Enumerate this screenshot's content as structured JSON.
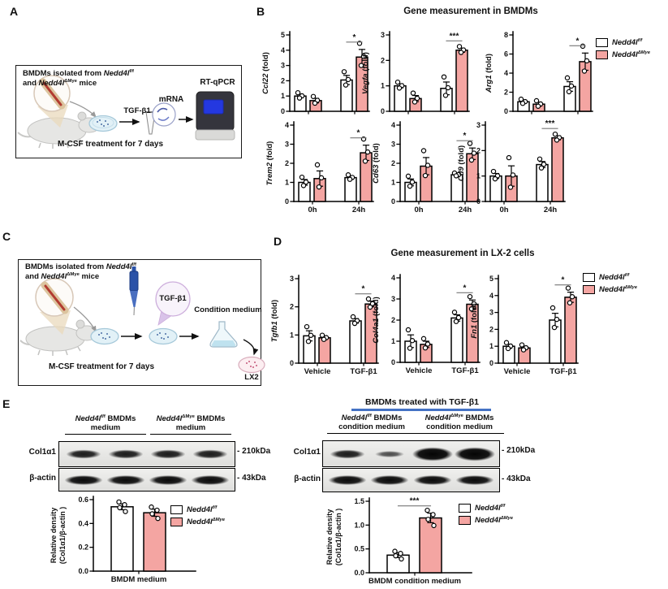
{
  "panel_labels": {
    "a": "A",
    "b": "B",
    "c": "C",
    "d": "D",
    "e": "E"
  },
  "colors": {
    "pink": "#F4A5A2",
    "blue_underline": "#4472C4",
    "wt_bar": "#FFFFFF"
  },
  "legend": {
    "wt_base": "Nedd4l",
    "wt_sup": "f/f",
    "ko_base": "Nedd4l",
    "ko_sup": "ΔMye"
  },
  "panelA": {
    "line1_prefix": "BMDMs isolated from ",
    "line2_prefix": "and ",
    "line2_suffix": " mice",
    "mcsf": "M-CSF treatment for 7 days",
    "tgfb": "TGF-β1",
    "mrna": "mRNA",
    "rtqpcr": "RT-qPCR"
  },
  "panelB": {
    "title": "Gene measurement in BMDMs"
  },
  "panelC": {
    "line1_prefix": "BMDMs isolated from ",
    "line2_prefix": "and ",
    "line2_suffix": " mice",
    "mcsf": "M-CSF treatment for 7 days",
    "tgfb": "TGF-β1",
    "condition": "Condition medium",
    "lx2": "LX2"
  },
  "panelD": {
    "title": "Gene measurement in LX-2 cells"
  },
  "panelE": {
    "left": {
      "group_suffix": " BMDMs",
      "group_line2": "medium",
      "rows": [
        {
          "label": "Col1α1",
          "kda": "- 210kDa",
          "bands": [
            "m",
            "m",
            "m",
            "m"
          ]
        },
        {
          "label": "β-actin",
          "kda": "- 43kDa",
          "bands": [
            "d",
            "d",
            "d",
            "d"
          ]
        }
      ]
    },
    "right": {
      "header": "BMDMs treated with TGF-β1",
      "group_suffix": " BMDMs",
      "group_line2": "condition medium",
      "rows": [
        {
          "label": "Col1α1",
          "kda": "- 210kDa",
          "bands": [
            "m",
            "l",
            "D",
            "D"
          ]
        },
        {
          "label": "β-actin",
          "kda": "- 43kDa",
          "bands": [
            "d",
            "d",
            "d",
            "d"
          ]
        }
      ]
    }
  },
  "chart_data": [
    {
      "id": "ccl22",
      "type": "bar",
      "panel": "B",
      "gene": "Ccl22",
      "ylabel_suffix": "(fold)",
      "ylim": [
        0,
        5
      ],
      "yticks": [
        "0",
        "1",
        "2",
        "3",
        "4",
        "5"
      ],
      "categories": [
        "0h",
        "24h"
      ],
      "show_cat_labels": false,
      "n_points": 3,
      "sig": {
        "category": 1,
        "label": "*"
      },
      "series": [
        {
          "name": "Nedd4l f/f",
          "color": "#FFFFFF",
          "values": [
            1.0,
            2.05
          ],
          "errors": [
            0.12,
            0.3
          ]
        },
        {
          "name": "Nedd4l ΔMye",
          "color": "#F4A5A2",
          "values": [
            0.7,
            3.55
          ],
          "errors": [
            0.15,
            0.5
          ]
        }
      ]
    },
    {
      "id": "vegfa",
      "type": "bar",
      "panel": "B",
      "gene": "Vegfa",
      "ylabel_suffix": "(fold)",
      "ylim": [
        0,
        3
      ],
      "yticks": [
        "0",
        "1",
        "2",
        "3"
      ],
      "categories": [
        "0h",
        "24h"
      ],
      "show_cat_labels": false,
      "n_points": 3,
      "sig": {
        "category": 1,
        "label": "***"
      },
      "series": [
        {
          "name": "Nedd4l f/f",
          "color": "#FFFFFF",
          "values": [
            1.0,
            0.9
          ],
          "errors": [
            0.08,
            0.25
          ]
        },
        {
          "name": "Nedd4l ΔMye",
          "color": "#F4A5A2",
          "values": [
            0.5,
            2.4
          ],
          "errors": [
            0.12,
            0.08
          ]
        }
      ]
    },
    {
      "id": "arg1",
      "type": "bar",
      "panel": "B",
      "gene": "Arg1",
      "ylabel_suffix": "(fold)",
      "ylim": [
        0,
        8
      ],
      "yticks": [
        "0",
        "2",
        "4",
        "6",
        "8"
      ],
      "categories": [
        "0h",
        "24h"
      ],
      "show_cat_labels": false,
      "n_points": 3,
      "sig": {
        "category": 1,
        "label": "*"
      },
      "series": [
        {
          "name": "Nedd4l f/f",
          "color": "#FFFFFF",
          "values": [
            1.0,
            2.6
          ],
          "errors": [
            0.15,
            0.5
          ]
        },
        {
          "name": "Nedd4l ΔMye",
          "color": "#F4A5A2",
          "values": [
            0.75,
            5.2
          ],
          "errors": [
            0.2,
            0.9
          ]
        }
      ]
    },
    {
      "id": "trem2",
      "type": "bar",
      "panel": "B",
      "gene": "Trem2",
      "ylabel_suffix": "(fold)",
      "ylim": [
        0,
        4
      ],
      "yticks": [
        "0",
        "1",
        "2",
        "3",
        "4"
      ],
      "categories": [
        "0h",
        "24h"
      ],
      "show_cat_labels": true,
      "n_points": 3,
      "sig": {
        "category": 1,
        "label": "*"
      },
      "series": [
        {
          "name": "Nedd4l f/f",
          "color": "#FFFFFF",
          "values": [
            1.0,
            1.25
          ],
          "errors": [
            0.15,
            0.08
          ]
        },
        {
          "name": "Nedd4l ΔMye",
          "color": "#F4A5A2",
          "values": [
            1.2,
            2.55
          ],
          "errors": [
            0.4,
            0.4
          ]
        }
      ]
    },
    {
      "id": "cd63",
      "type": "bar",
      "panel": "B",
      "gene": "Cd63",
      "ylabel_suffix": "(fold)",
      "ylim": [
        0,
        4
      ],
      "yticks": [
        "0",
        "1",
        "2",
        "3",
        "4"
      ],
      "categories": [
        "0h",
        "24h"
      ],
      "show_cat_labels": true,
      "n_points": 3,
      "sig": {
        "category": 1,
        "label": "*"
      },
      "series": [
        {
          "name": "Nedd4l f/f",
          "color": "#FFFFFF",
          "values": [
            1.0,
            1.4
          ],
          "errors": [
            0.18,
            0.05
          ]
        },
        {
          "name": "Nedd4l ΔMye",
          "color": "#F4A5A2",
          "values": [
            1.85,
            2.5
          ],
          "errors": [
            0.45,
            0.3
          ]
        }
      ]
    },
    {
      "id": "cd9",
      "type": "bar",
      "panel": "B",
      "gene": "Cd9",
      "ylabel_suffix": "(fold)",
      "ylim": [
        0,
        3
      ],
      "yticks": [
        "0",
        "1",
        "2",
        "3"
      ],
      "categories": [
        "0h",
        "24h"
      ],
      "show_cat_labels": true,
      "n_points": 3,
      "sig": {
        "category": 1,
        "label": "***"
      },
      "series": [
        {
          "name": "Nedd4l f/f",
          "color": "#FFFFFF",
          "values": [
            1.0,
            1.45
          ],
          "errors": [
            0.1,
            0.12
          ]
        },
        {
          "name": "Nedd4l ΔMye",
          "color": "#F4A5A2",
          "values": [
            1.0,
            2.5
          ],
          "errors": [
            0.4,
            0.08
          ]
        }
      ]
    },
    {
      "id": "tgfb1",
      "type": "bar",
      "panel": "D",
      "gene": "Tgfb1",
      "ylabel_suffix": "(fold)",
      "ylim": [
        0,
        3
      ],
      "yticks": [
        "0",
        "1",
        "2",
        "3"
      ],
      "categories": [
        "Vehicle",
        "TGF-β1"
      ],
      "show_cat_labels": true,
      "n_points": 3,
      "sig": {
        "category": 1,
        "label": "*"
      },
      "series": [
        {
          "name": "Nedd4l f/f",
          "color": "#FFFFFF",
          "values": [
            0.97,
            1.5
          ],
          "errors": [
            0.18,
            0.08
          ]
        },
        {
          "name": "Nedd4l ΔMye",
          "color": "#F4A5A2",
          "values": [
            0.9,
            2.1
          ],
          "errors": [
            0.05,
            0.1
          ]
        }
      ]
    },
    {
      "id": "col4a1",
      "type": "bar",
      "panel": "D",
      "gene": "Col4a1",
      "ylabel_suffix": "(fold)",
      "ylim": [
        0,
        4
      ],
      "yticks": [
        "0",
        "1",
        "2",
        "3",
        "4"
      ],
      "categories": [
        "Vehicle",
        "TGF-β1"
      ],
      "show_cat_labels": true,
      "n_points": 3,
      "sig": {
        "category": 1,
        "label": "*"
      },
      "series": [
        {
          "name": "Nedd4l f/f",
          "color": "#FFFFFF",
          "values": [
            1.0,
            2.1
          ],
          "errors": [
            0.3,
            0.15
          ]
        },
        {
          "name": "Nedd4l ΔMye",
          "color": "#F4A5A2",
          "values": [
            0.85,
            2.75
          ],
          "errors": [
            0.15,
            0.2
          ]
        }
      ]
    },
    {
      "id": "fn1",
      "type": "bar",
      "panel": "D",
      "gene": "Fn1",
      "ylabel_suffix": "(fold)",
      "ylim": [
        0,
        5
      ],
      "yticks": [
        "0",
        "1",
        "2",
        "3",
        "4",
        "5"
      ],
      "categories": [
        "Vehicle",
        "TGF-β1"
      ],
      "show_cat_labels": true,
      "n_points": 3,
      "sig": {
        "category": 1,
        "label": "*"
      },
      "series": [
        {
          "name": "Nedd4l f/f",
          "color": "#FFFFFF",
          "values": [
            1.0,
            2.55
          ],
          "errors": [
            0.12,
            0.4
          ]
        },
        {
          "name": "Nedd4l ΔMye",
          "color": "#F4A5A2",
          "values": [
            0.9,
            3.9
          ],
          "errors": [
            0.1,
            0.3
          ]
        }
      ]
    },
    {
      "id": "density_medium",
      "type": "bar",
      "panel": "E",
      "ylabel_lines": [
        "Relative density",
        "(Col1α1/β-actin )"
      ],
      "ylim": [
        0,
        0.6
      ],
      "yticks": [
        "0.0",
        "0.2",
        "0.4",
        "0.6"
      ],
      "categories": [
        "BMDM medium"
      ],
      "show_cat_labels": true,
      "n_points": 4,
      "series": [
        {
          "name": "Nedd4l f/f",
          "color": "#FFFFFF",
          "values": [
            0.54
          ],
          "errors": [
            0.025
          ]
        },
        {
          "name": "Nedd4l ΔMye",
          "color": "#F4A5A2",
          "values": [
            0.49
          ],
          "errors": [
            0.03
          ]
        }
      ]
    },
    {
      "id": "density_condition",
      "type": "bar",
      "panel": "E",
      "ylabel_lines": [
        "Relative density",
        "(Col1α1/β-actin )"
      ],
      "ylim": [
        0,
        1.5
      ],
      "yticks": [
        "0.0",
        "0.5",
        "1.0",
        "1.5"
      ],
      "categories": [
        "BMDM condition medium"
      ],
      "show_cat_labels": true,
      "n_points": 4,
      "sig": {
        "category": 0,
        "label": "***"
      },
      "series": [
        {
          "name": "Nedd4l f/f",
          "color": "#FFFFFF",
          "values": [
            0.37
          ],
          "errors": [
            0.05
          ]
        },
        {
          "name": "Nedd4l ΔMye",
          "color": "#F4A5A2",
          "values": [
            1.15
          ],
          "errors": [
            0.1
          ]
        }
      ]
    }
  ]
}
